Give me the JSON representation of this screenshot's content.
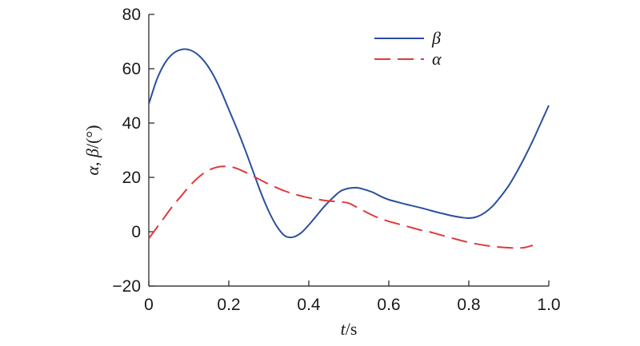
{
  "chart_data": {
    "type": "line",
    "xlabel": "t/s",
    "ylabel": "α, β/(°)",
    "xlim": [
      0,
      1.0
    ],
    "ylim": [
      -20,
      80
    ],
    "xticks": [
      0,
      0.2,
      0.4,
      0.6,
      0.8,
      1.0
    ],
    "xtick_labels": [
      "0",
      "0.2",
      "0.4",
      "0.6",
      "0.8",
      "1.0"
    ],
    "yticks": [
      -20,
      0,
      20,
      40,
      60,
      80
    ],
    "ytick_labels": [
      "−20",
      "0",
      "20",
      "40",
      "60",
      "80"
    ],
    "grid": false,
    "legend_position": "top-right",
    "series": [
      {
        "name": "β",
        "color": "#2b4fa0",
        "dash": "solid",
        "x": [
          0,
          0.02,
          0.04,
          0.06,
          0.08,
          0.1,
          0.12,
          0.14,
          0.16,
          0.18,
          0.2,
          0.22,
          0.24,
          0.26,
          0.28,
          0.3,
          0.32,
          0.34,
          0.36,
          0.38,
          0.4,
          0.42,
          0.44,
          0.46,
          0.48,
          0.5,
          0.52,
          0.54,
          0.56,
          0.58,
          0.6,
          0.62,
          0.64,
          0.66,
          0.68,
          0.7,
          0.72,
          0.74,
          0.76,
          0.78,
          0.8,
          0.82,
          0.84,
          0.86,
          0.88,
          0.9,
          0.92,
          0.94,
          0.96,
          0.98,
          1.0
        ],
        "values": [
          47,
          56,
          62,
          65.5,
          67,
          67,
          65.5,
          62.5,
          58,
          52,
          45,
          38,
          30.5,
          22.5,
          14.5,
          7.5,
          2,
          -1.5,
          -2,
          -0.5,
          2.5,
          6,
          9.5,
          12.5,
          15,
          16,
          16.2,
          15.5,
          14.5,
          13,
          11.8,
          11,
          10.2,
          9.5,
          8.8,
          8,
          7.2,
          6.5,
          5.8,
          5.3,
          5,
          5.5,
          7,
          9.5,
          13,
          17,
          22,
          27.5,
          33.5,
          40,
          46.5
        ]
      },
      {
        "name": "α",
        "color": "#e03a3a",
        "dash": "dashed",
        "x": [
          0,
          0.02,
          0.04,
          0.06,
          0.08,
          0.1,
          0.12,
          0.14,
          0.16,
          0.18,
          0.2,
          0.22,
          0.24,
          0.26,
          0.28,
          0.3,
          0.32,
          0.34,
          0.36,
          0.38,
          0.4,
          0.42,
          0.44,
          0.46,
          0.48,
          0.5,
          0.52,
          0.54,
          0.56,
          0.58,
          0.6,
          0.62,
          0.64,
          0.66,
          0.68,
          0.7,
          0.72,
          0.74,
          0.76,
          0.78,
          0.8,
          0.82,
          0.84,
          0.86,
          0.88,
          0.9,
          0.92,
          0.94,
          0.96
        ],
        "values": [
          -2.5,
          1.5,
          5.5,
          9.5,
          13,
          16.5,
          19.5,
          21.8,
          23.3,
          24,
          24,
          23.3,
          22,
          20.5,
          19,
          17.5,
          16.2,
          15,
          14,
          13.2,
          12.5,
          12,
          11.5,
          11.2,
          11,
          10.5,
          9,
          7.5,
          6,
          4.8,
          3.8,
          3,
          2.2,
          1.4,
          0.6,
          0,
          -0.8,
          -1.6,
          -2.4,
          -3.2,
          -3.9,
          -4.5,
          -5,
          -5.4,
          -5.7,
          -5.9,
          -6,
          -5.8,
          -5
        ]
      }
    ]
  }
}
